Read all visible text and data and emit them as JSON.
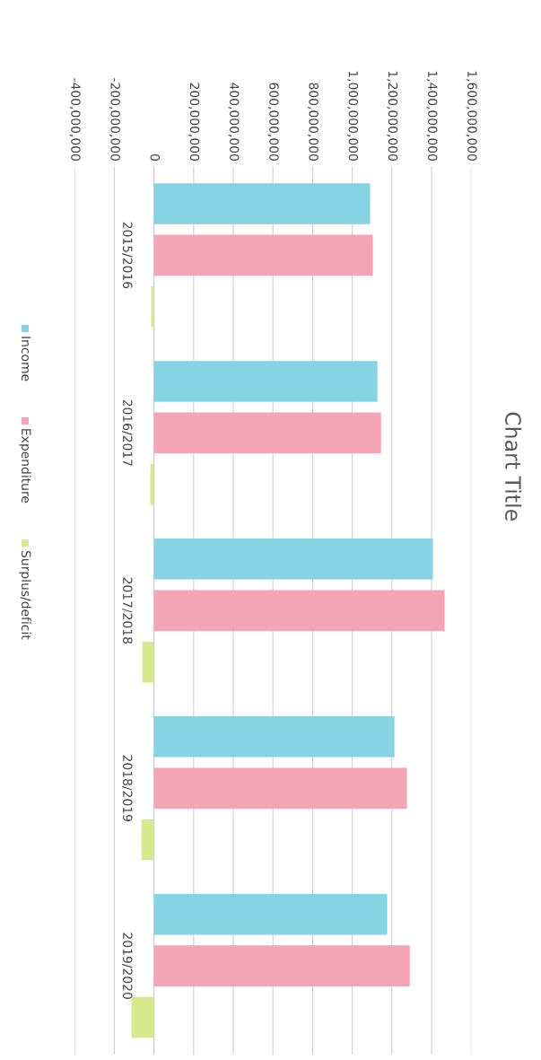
{
  "chart_data": {
    "type": "bar",
    "orientation": "horizontal",
    "title": "Chart Title",
    "categories": [
      "2015/2016",
      "2016/2017",
      "2017/2018",
      "2018/2019",
      "2019/2020"
    ],
    "series": [
      {
        "name": "Income",
        "color": "#86d3e3",
        "values": [
          1090000000,
          1127000000,
          1407000000,
          1213000000,
          1176000000
        ]
      },
      {
        "name": "Expenditure",
        "color": "#f3a5b6",
        "values": [
          1104000000,
          1145000000,
          1466000000,
          1276000000,
          1290000000
        ]
      },
      {
        "name": "Surplus/deficit",
        "color": "#d6e98c",
        "values": [
          -14000000,
          -18000000,
          -59000000,
          -63000000,
          -114000000
        ]
      }
    ],
    "xlim": [
      -400000000,
      1600000000
    ],
    "xticks": [
      {
        "value": -400000000,
        "label": "-400,000,000"
      },
      {
        "value": -200000000,
        "label": "-200,000,000"
      },
      {
        "value": 0,
        "label": "0"
      },
      {
        "value": 200000000,
        "label": "200,000,000"
      },
      {
        "value": 400000000,
        "label": "400,000,000"
      },
      {
        "value": 600000000,
        "label": "600,000,000"
      },
      {
        "value": 800000000,
        "label": "800,000,000"
      },
      {
        "value": 1000000000,
        "label": "1,000,000,000"
      },
      {
        "value": 1200000000,
        "label": "1,200,000,000"
      },
      {
        "value": 1400000000,
        "label": "1,400,000,000"
      },
      {
        "value": 1600000000,
        "label": "1,600,000,000"
      }
    ],
    "grid": "x",
    "legend": "left"
  }
}
